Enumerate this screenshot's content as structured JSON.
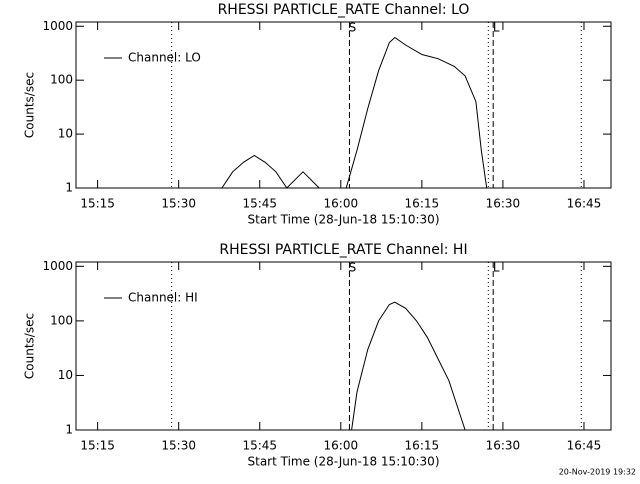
{
  "chart_data": [
    {
      "type": "line",
      "title": "RHESSI PARTICLE_RATE Channel: LO",
      "xlabel": "Start Time (28-Jun-18 15:10:30)",
      "ylabel": "Counts/sec",
      "log_y": true,
      "xlim": [
        911,
        1010
      ],
      "ylim": [
        1,
        1200
      ],
      "legend": "upper left",
      "yticks": [
        1,
        10,
        100,
        1000
      ],
      "xticks": [
        {
          "value": 915,
          "label": "15:15"
        },
        {
          "value": 930,
          "label": "15:30"
        },
        {
          "value": 945,
          "label": "15:45"
        },
        {
          "value": 960,
          "label": "16:00"
        },
        {
          "value": 975,
          "label": "16:15"
        },
        {
          "value": 990,
          "label": "16:30"
        },
        {
          "value": 1005,
          "label": "16:45"
        }
      ],
      "markers": [
        {
          "x": 928.7,
          "style": "dotted"
        },
        {
          "x": 961.6,
          "style": "dashed",
          "label": "S"
        },
        {
          "x": 987.3,
          "style": "dotted"
        },
        {
          "x": 988.2,
          "style": "dashed",
          "label": "L"
        },
        {
          "x": 1004.5,
          "style": "dotted"
        }
      ],
      "series": [
        {
          "name": "Channel: LO",
          "color": "#000000",
          "x": [
            938,
            940,
            942,
            944,
            946,
            948,
            950,
            953,
            956,
            null,
            961,
            963,
            965,
            967,
            969,
            970,
            972,
            975,
            978,
            981,
            983,
            985,
            986,
            987
          ],
          "values": [
            1,
            2,
            3,
            4,
            3,
            2,
            1,
            2,
            1,
            null,
            1,
            5,
            30,
            150,
            500,
            620,
            450,
            300,
            250,
            180,
            120,
            40,
            5,
            1
          ]
        }
      ]
    },
    {
      "type": "line",
      "title": "RHESSI PARTICLE_RATE Channel: HI",
      "xlabel": "Start Time (28-Jun-18 15:10:30)",
      "ylabel": "Counts/sec",
      "log_y": true,
      "xlim": [
        911,
        1010
      ],
      "ylim": [
        1,
        1200
      ],
      "legend": "upper left",
      "yticks": [
        1,
        10,
        100,
        1000
      ],
      "xticks": [
        {
          "value": 915,
          "label": "15:15"
        },
        {
          "value": 930,
          "label": "15:30"
        },
        {
          "value": 945,
          "label": "15:45"
        },
        {
          "value": 960,
          "label": "16:00"
        },
        {
          "value": 975,
          "label": "16:15"
        },
        {
          "value": 990,
          "label": "16:30"
        },
        {
          "value": 1005,
          "label": "16:45"
        }
      ],
      "markers": [
        {
          "x": 928.7,
          "style": "dotted"
        },
        {
          "x": 961.6,
          "style": "dashed",
          "label": "S"
        },
        {
          "x": 987.3,
          "style": "dotted"
        },
        {
          "x": 988.2,
          "style": "dashed",
          "label": "L"
        },
        {
          "x": 1004.5,
          "style": "dotted"
        }
      ],
      "series": [
        {
          "name": "Channel: HI",
          "color": "#000000",
          "x": [
            962,
            963,
            965,
            967,
            969,
            970,
            972,
            974,
            976,
            978,
            980,
            982,
            983
          ],
          "values": [
            1,
            5,
            30,
            100,
            200,
            220,
            170,
            100,
            50,
            20,
            8,
            2,
            1
          ]
        }
      ]
    }
  ],
  "footer": "20-Nov-2019 19:32"
}
